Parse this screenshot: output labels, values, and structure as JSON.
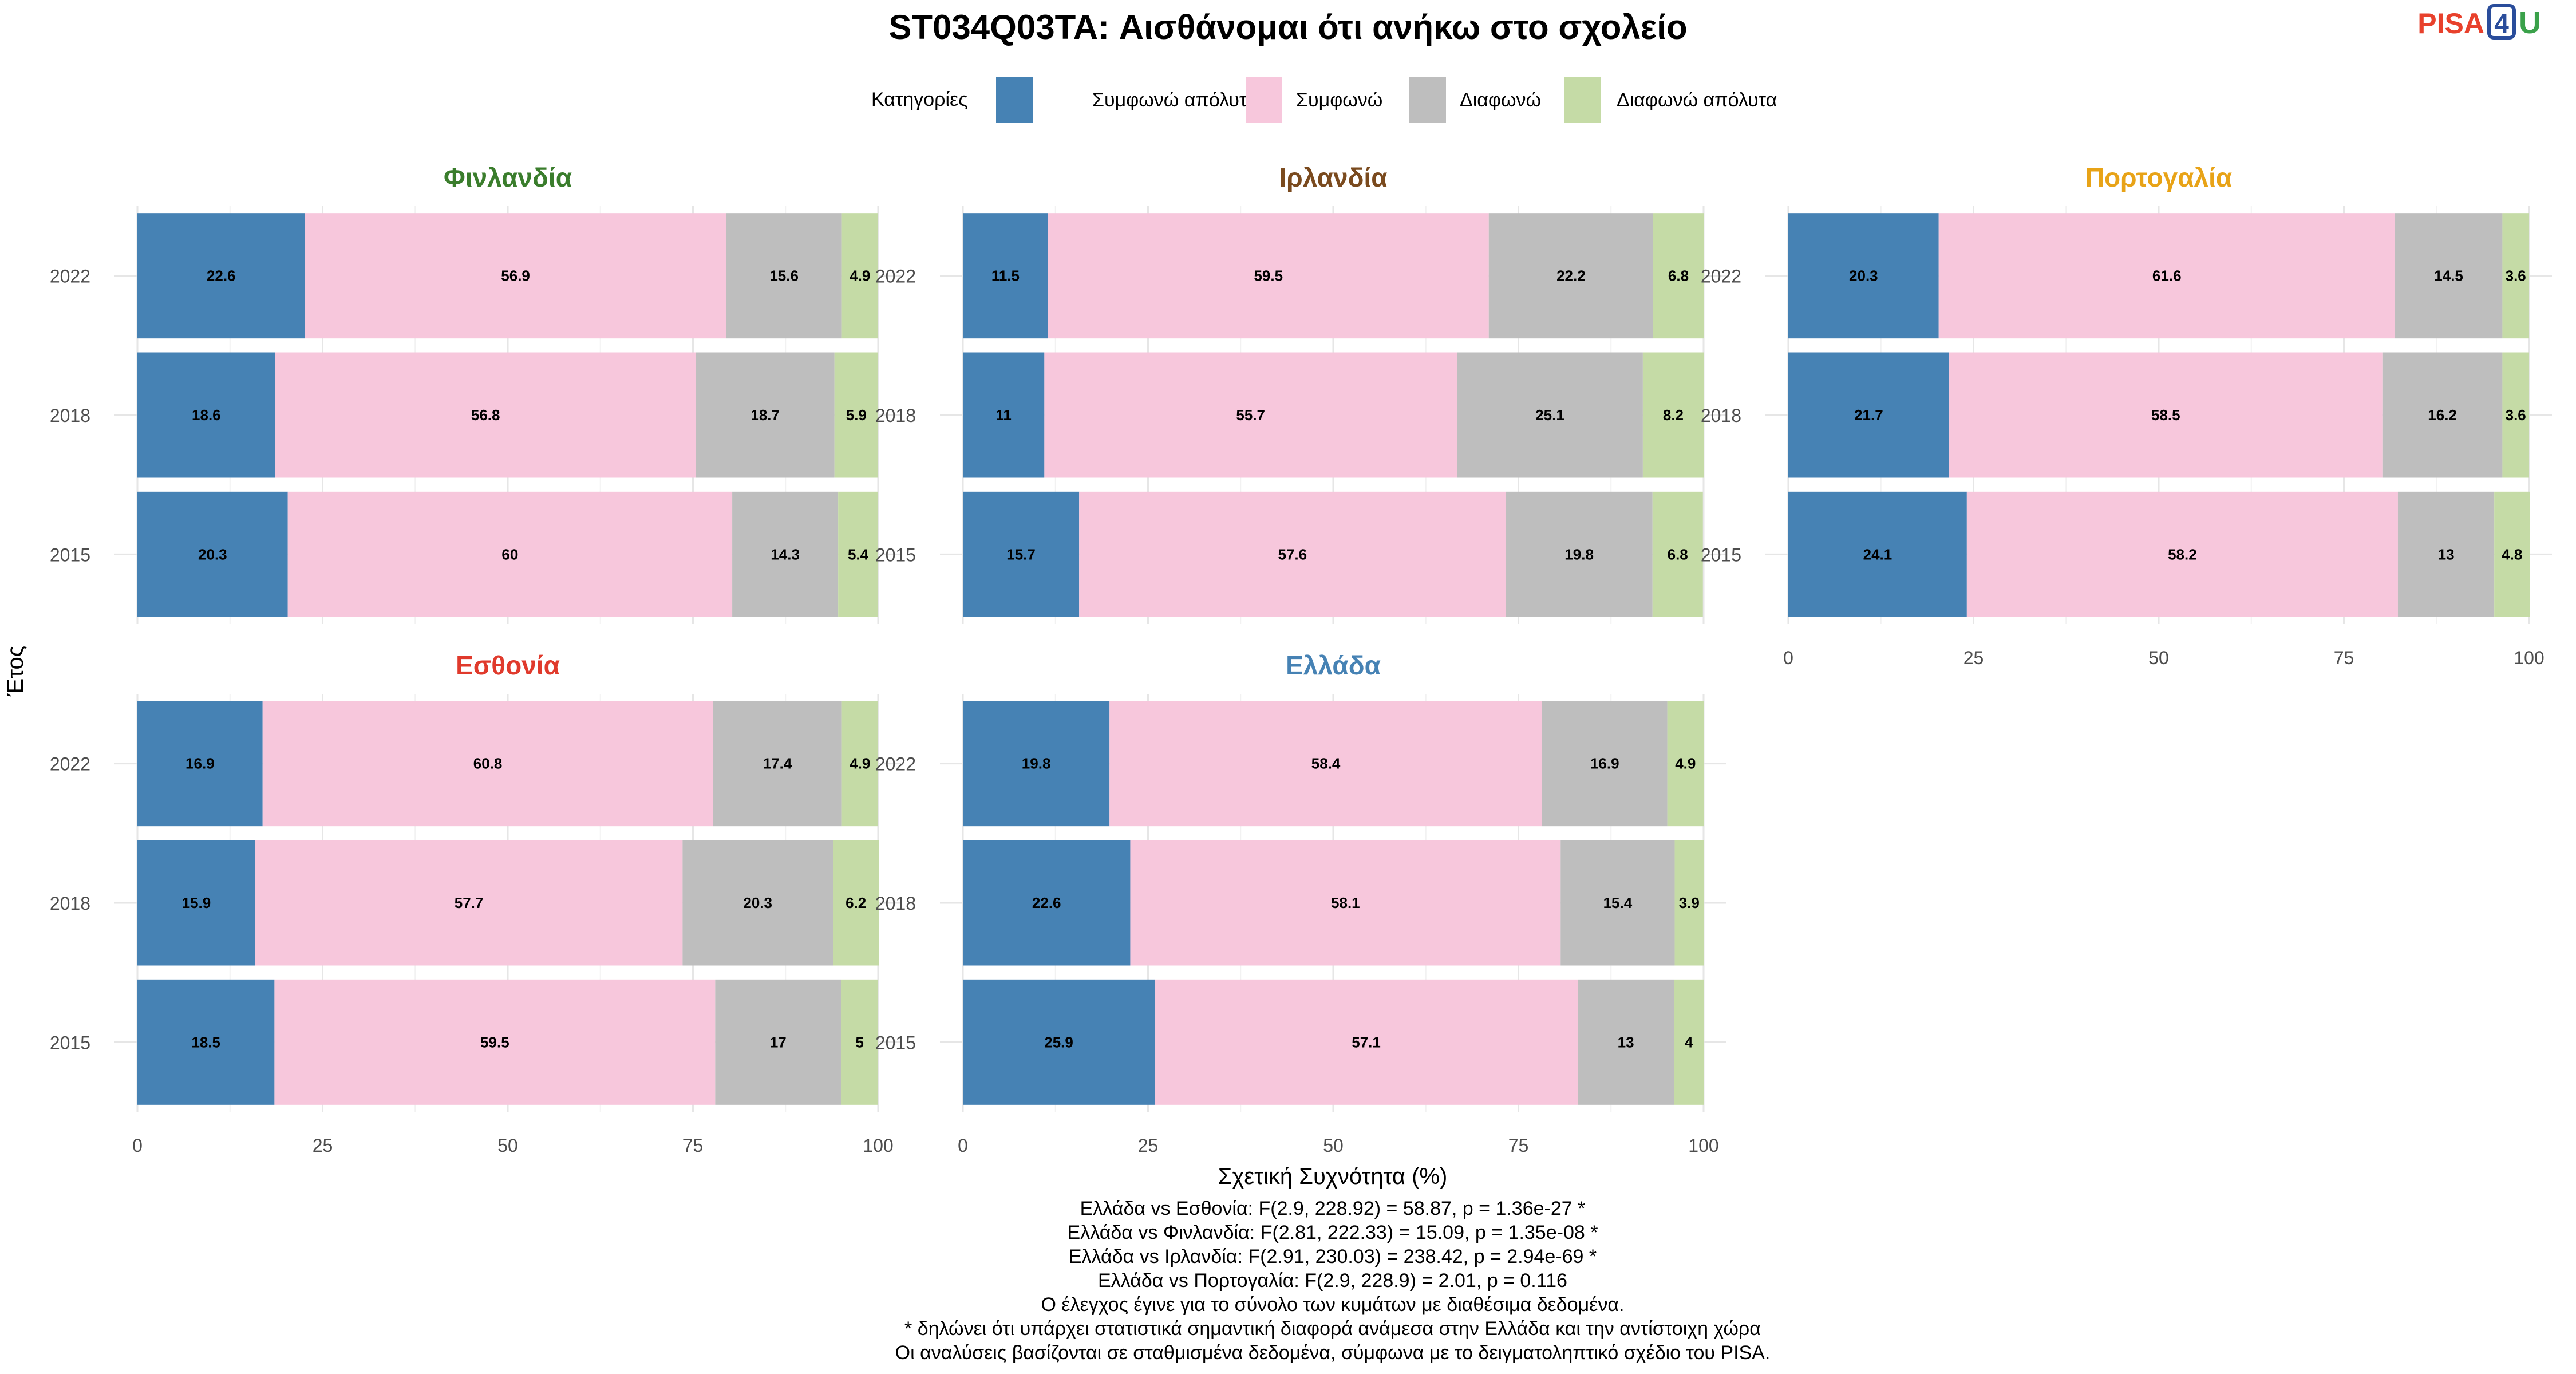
{
  "title": "ST034Q03TA: Αισθάνομαι ότι ανήκω στο σχολείο",
  "logo": {
    "text_a": "PISA",
    "text_b": "4",
    "text_c": "U",
    "color_a": "#e8412c",
    "color_b": "#2a4d9b",
    "color_c": "#3aa14a"
  },
  "legend": {
    "title": "Κατηγορίες",
    "items": [
      {
        "label": "Συμφωνώ απόλυτα",
        "color": "#4682b4"
      },
      {
        "label": "Συμφωνώ",
        "color": "#f7c7dc"
      },
      {
        "label": "Διαφωνώ",
        "color": "#bebebe"
      },
      {
        "label": "Διαφωνώ απόλυτα",
        "color": "#c5dba6"
      }
    ]
  },
  "chart_data": {
    "type": "bar",
    "orientation": "horizontal-stacked",
    "xlabel": "Σχετική Συχνότητα (%)",
    "ylabel": "Έτος",
    "xlim": [
      0,
      100
    ],
    "xticks": [
      0,
      25,
      50,
      75,
      100
    ],
    "categories": [
      "2022",
      "2018",
      "2015"
    ],
    "series_names": [
      "Συμφωνώ απόλυτα",
      "Συμφωνώ",
      "Διαφωνώ",
      "Διαφωνώ απόλυτα"
    ],
    "facets": [
      {
        "name": "Φινλανδία",
        "color": "#3a7d2c",
        "rows": [
          {
            "year": "2022",
            "values": [
              22.6,
              56.9,
              15.6,
              4.9
            ]
          },
          {
            "year": "2018",
            "values": [
              18.6,
              56.8,
              18.7,
              5.9
            ]
          },
          {
            "year": "2015",
            "values": [
              20.3,
              60,
              14.3,
              5.4
            ]
          }
        ]
      },
      {
        "name": "Ιρλανδία",
        "color": "#7a4a1e",
        "rows": [
          {
            "year": "2022",
            "values": [
              11.5,
              59.5,
              22.2,
              6.8
            ]
          },
          {
            "year": "2018",
            "values": [
              11,
              55.7,
              25.1,
              8.2
            ]
          },
          {
            "year": "2015",
            "values": [
              15.7,
              57.6,
              19.8,
              6.8
            ]
          }
        ]
      },
      {
        "name": "Πορτογαλία",
        "color": "#e8a317",
        "rows": [
          {
            "year": "2022",
            "values": [
              20.3,
              61.6,
              14.5,
              3.6
            ]
          },
          {
            "year": "2018",
            "values": [
              21.7,
              58.5,
              16.2,
              3.6
            ]
          },
          {
            "year": "2015",
            "values": [
              24.1,
              58.2,
              13,
              4.8
            ]
          }
        ]
      },
      {
        "name": "Εσθονία",
        "color": "#e03a2c",
        "rows": [
          {
            "year": "2022",
            "values": [
              16.9,
              60.8,
              17.4,
              4.9
            ]
          },
          {
            "year": "2018",
            "values": [
              15.9,
              57.7,
              20.3,
              6.2
            ]
          },
          {
            "year": "2015",
            "values": [
              18.5,
              59.5,
              17,
              5
            ]
          }
        ]
      },
      {
        "name": "Ελλάδα",
        "color": "#4682b4",
        "rows": [
          {
            "year": "2022",
            "values": [
              19.8,
              58.4,
              16.9,
              4.9
            ]
          },
          {
            "year": "2018",
            "values": [
              22.6,
              58.1,
              15.4,
              3.9
            ]
          },
          {
            "year": "2015",
            "values": [
              25.9,
              57.1,
              13,
              4
            ]
          }
        ]
      }
    ]
  },
  "notes": [
    "Ελλάδα vs Εσθονία: F(2.9, 228.92) = 58.87, p = 1.36e-27 *",
    "Ελλάδα vs Φινλανδία: F(2.81, 222.33) = 15.09, p = 1.35e-08 *",
    "Ελλάδα vs Ιρλανδία: F(2.91, 230.03) = 238.42, p = 2.94e-69 *",
    "Ελλάδα vs Πορτογαλία: F(2.9, 228.9) = 2.01, p = 0.116",
    "Ο έλεγχος έγινε για το σύνολο των κυμάτων με διαθέσιμα δεδομένα.",
    "* δηλώνει ότι υπάρχει στατιστικά σημαντική διαφορά ανάμεσα στην Ελλάδα και την αντίστοιχη χώρα",
    "Οι αναλύσεις βασίζονται σε σταθμισμένα δεδομένα, σύμφωνα με το δειγματοληπτικό σχέδιο του PISA."
  ]
}
